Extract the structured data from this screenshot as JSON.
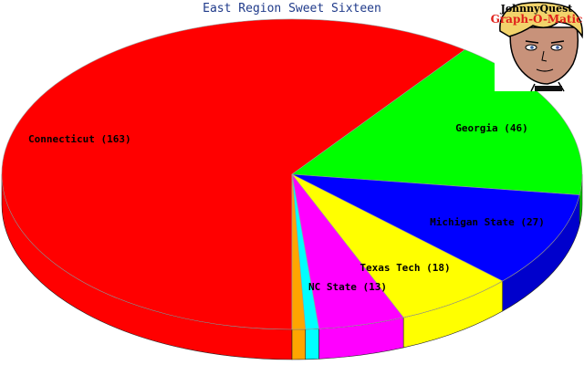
{
  "chart_data": {
    "type": "pie",
    "title": "East Region Sweet Sixteen",
    "slices": [
      {
        "label": "Connecticut (163)",
        "name": "Connecticut",
        "value": 163,
        "color": "#ff0000",
        "side": "#ff0000"
      },
      {
        "label": "Georgia (46)",
        "name": "Georgia",
        "value": 46,
        "color": "#00ff00",
        "side": "#00cc00"
      },
      {
        "label": "Michigan State (27)",
        "name": "Michigan State",
        "value": 27,
        "color": "#0000ff",
        "side": "#0000cc"
      },
      {
        "label": "Texas Tech (18)",
        "name": "Texas Tech",
        "value": 18,
        "color": "#ffff00",
        "side": "#ffff00"
      },
      {
        "label": "NC State (13)",
        "name": "NC State",
        "value": 13,
        "color": "#ff00ff",
        "side": "#ff00ff"
      },
      {
        "label": "",
        "name": "",
        "value": 2,
        "color": "#00ffff",
        "side": "#00ffff"
      },
      {
        "label": "",
        "name": "",
        "value": 2,
        "color": "#ffa500",
        "side": "#ffa500"
      }
    ]
  },
  "logo": {
    "line1": "JohnnyQuest",
    "line2": "Graph-O-Matic"
  }
}
